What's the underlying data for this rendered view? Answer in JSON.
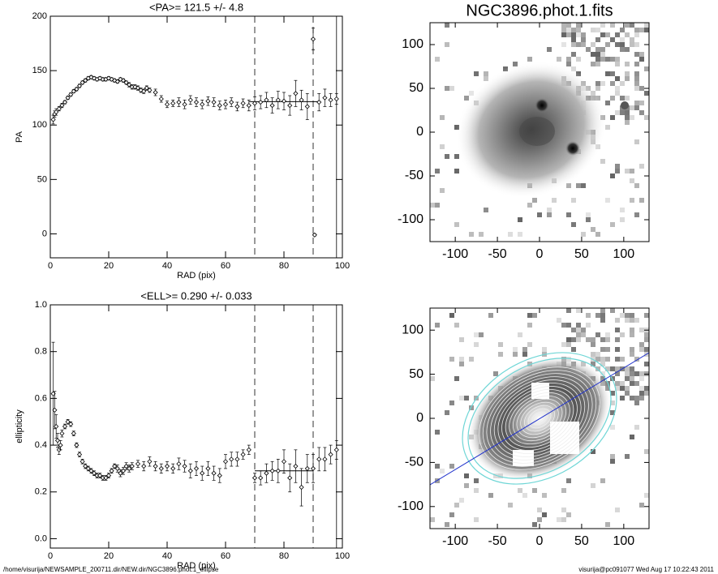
{
  "chart_data": [
    {
      "type": "errorbar",
      "title": "<PA>= 121.5 +/-   4.8",
      "xlabel": "RAD (pix)",
      "ylabel": "PA",
      "x": [
        1,
        1.5,
        2,
        3,
        4,
        5,
        6,
        7,
        8,
        9,
        10,
        11,
        12,
        13,
        14,
        15,
        16,
        17,
        18,
        19,
        20,
        21,
        22,
        23,
        24,
        25,
        26,
        27,
        28,
        29,
        30,
        31,
        32,
        33,
        34,
        36,
        38,
        40,
        42,
        44,
        46,
        48,
        50,
        52,
        54,
        56,
        58,
        60,
        62,
        64,
        66,
        68,
        70,
        72,
        74,
        76,
        78,
        80,
        82,
        84,
        86,
        88,
        90,
        90.5,
        92,
        94,
        96,
        98
      ],
      "values": [
        105,
        110,
        112,
        115,
        118,
        121,
        125,
        128,
        131,
        133,
        136,
        139,
        141,
        143,
        144,
        143,
        142,
        143,
        142,
        142,
        143,
        142,
        141,
        140,
        142,
        141,
        139,
        137,
        135,
        135,
        134,
        132,
        131,
        134,
        132,
        130,
        124,
        119,
        120,
        121,
        119,
        123,
        121,
        119,
        122,
        121,
        118,
        119,
        121,
        117,
        120,
        118,
        120,
        121,
        123,
        118,
        123,
        122,
        118,
        129,
        123,
        117,
        179,
        -1,
        121,
        125,
        123,
        124
      ],
      "errors": [
        4,
        3,
        3,
        2,
        2,
        1.5,
        1.5,
        1.5,
        1.5,
        1.5,
        1.5,
        1.5,
        1.5,
        1.5,
        1.5,
        1.5,
        1.5,
        1.5,
        1.5,
        1.5,
        1.5,
        1.5,
        1.5,
        1.5,
        1.5,
        1.5,
        1.5,
        2,
        2,
        2,
        2,
        2,
        2,
        2,
        2,
        3,
        3,
        3,
        3,
        4,
        4,
        4,
        4,
        4,
        4,
        4,
        4,
        4,
        4,
        4,
        4,
        5,
        6,
        6,
        7,
        7,
        8,
        8,
        9,
        12,
        9,
        12,
        10,
        1,
        8,
        8,
        6,
        5
      ],
      "xlim": [
        0,
        100
      ],
      "ylim": [
        -22,
        200
      ],
      "xticks": [
        0,
        20,
        40,
        60,
        80,
        100
      ],
      "yticks": [
        0,
        50,
        100,
        150,
        200
      ],
      "vlines": [
        {
          "x": 70,
          "style": "dashed"
        },
        {
          "x": 90,
          "style": "dashed"
        },
        {
          "x": 98,
          "style": "solid"
        }
      ],
      "fit": {
        "x": [
          68,
          92
        ],
        "value": 121.5
      },
      "color": "#000000"
    },
    {
      "type": "image",
      "title": "NGC3896.phot.1.fits",
      "xlim": [
        -130,
        130
      ],
      "ylim": [
        -125,
        125
      ],
      "xticks": [
        -100,
        -50,
        0,
        50,
        100
      ],
      "yticks": [
        -100,
        -50,
        0,
        50,
        100
      ]
    },
    {
      "type": "errorbar",
      "title": "<ELL>= 0.290 +/-  0.033",
      "xlabel": "RAD (pix)",
      "ylabel": "ellipticity",
      "x": [
        1,
        1.5,
        2,
        2.5,
        3,
        3.5,
        4,
        5,
        6,
        7,
        8,
        9,
        10,
        11,
        12,
        13,
        14,
        15,
        16,
        17,
        18,
        19,
        20,
        21,
        22,
        23,
        24,
        25,
        26,
        27,
        28,
        30,
        32,
        34,
        36,
        38,
        40,
        42,
        44,
        46,
        48,
        50,
        52,
        54,
        56,
        58,
        60,
        62,
        64,
        66,
        68,
        70,
        72,
        74,
        76,
        78,
        80,
        82,
        84,
        86,
        88,
        90,
        92,
        94,
        96,
        98
      ],
      "values": [
        0.62,
        0.55,
        0.48,
        0.42,
        0.38,
        0.4,
        0.45,
        0.48,
        0.5,
        0.49,
        0.45,
        0.4,
        0.36,
        0.33,
        0.31,
        0.3,
        0.29,
        0.28,
        0.27,
        0.27,
        0.26,
        0.26,
        0.27,
        0.29,
        0.31,
        0.3,
        0.28,
        0.29,
        0.31,
        0.3,
        0.31,
        0.32,
        0.31,
        0.33,
        0.31,
        0.3,
        0.31,
        0.3,
        0.32,
        0.31,
        0.29,
        0.3,
        0.28,
        0.3,
        0.28,
        0.27,
        0.33,
        0.34,
        0.34,
        0.36,
        0.38,
        0.26,
        0.26,
        0.28,
        0.29,
        0.29,
        0.33,
        0.26,
        0.31,
        0.22,
        0.3,
        0.3,
        0.34,
        0.34,
        0.36,
        0.38
      ],
      "errors": [
        0.22,
        0.08,
        0.05,
        0.03,
        0.02,
        0.02,
        0.015,
        0.01,
        0.01,
        0.01,
        0.01,
        0.01,
        0.01,
        0.01,
        0.01,
        0.01,
        0.01,
        0.01,
        0.01,
        0.01,
        0.01,
        0.01,
        0.01,
        0.01,
        0.01,
        0.015,
        0.015,
        0.015,
        0.015,
        0.015,
        0.015,
        0.015,
        0.02,
        0.02,
        0.02,
        0.02,
        0.02,
        0.02,
        0.025,
        0.025,
        0.03,
        0.03,
        0.03,
        0.03,
        0.03,
        0.03,
        0.03,
        0.03,
        0.03,
        0.02,
        0.02,
        0.02,
        0.03,
        0.04,
        0.04,
        0.05,
        0.05,
        0.06,
        0.07,
        0.08,
        0.06,
        0.06,
        0.05,
        0.05,
        0.04,
        0.04
      ],
      "xlim": [
        0,
        100
      ],
      "ylim": [
        -0.04,
        1.0
      ],
      "xticks": [
        0,
        20,
        40,
        60,
        80,
        100
      ],
      "yticks": [
        {
          "value": 0,
          "label": "0.0"
        },
        {
          "value": 0.2,
          "label": "0.2"
        },
        {
          "value": 0.4,
          "label": "0.4"
        },
        {
          "value": 0.6,
          "label": "0.6"
        },
        {
          "value": 0.8,
          "label": "0.8"
        },
        {
          "value": 1.0,
          "label": "1.0"
        }
      ],
      "vlines": [
        {
          "x": 70,
          "style": "dashed"
        },
        {
          "x": 90,
          "style": "dashed"
        },
        {
          "x": 98,
          "style": "solid"
        }
      ],
      "fit": {
        "x": [
          70,
          90
        ],
        "value": 0.29
      },
      "color": "#000000"
    },
    {
      "type": "image",
      "xlim": [
        -130,
        130
      ],
      "ylim": [
        -125,
        125
      ],
      "xticks": [
        -100,
        -50,
        0,
        50,
        100
      ],
      "yticks": [
        -100,
        -50,
        0,
        50,
        100
      ]
    }
  ],
  "footer": {
    "path": "/home/visurija/NEWSAMPLE_200711.dir/NEW.dir/NGC3896.phot.1_ellipse",
    "stamp": "visurija@pc091077  Wed Aug 17 10:22:43 2011"
  }
}
